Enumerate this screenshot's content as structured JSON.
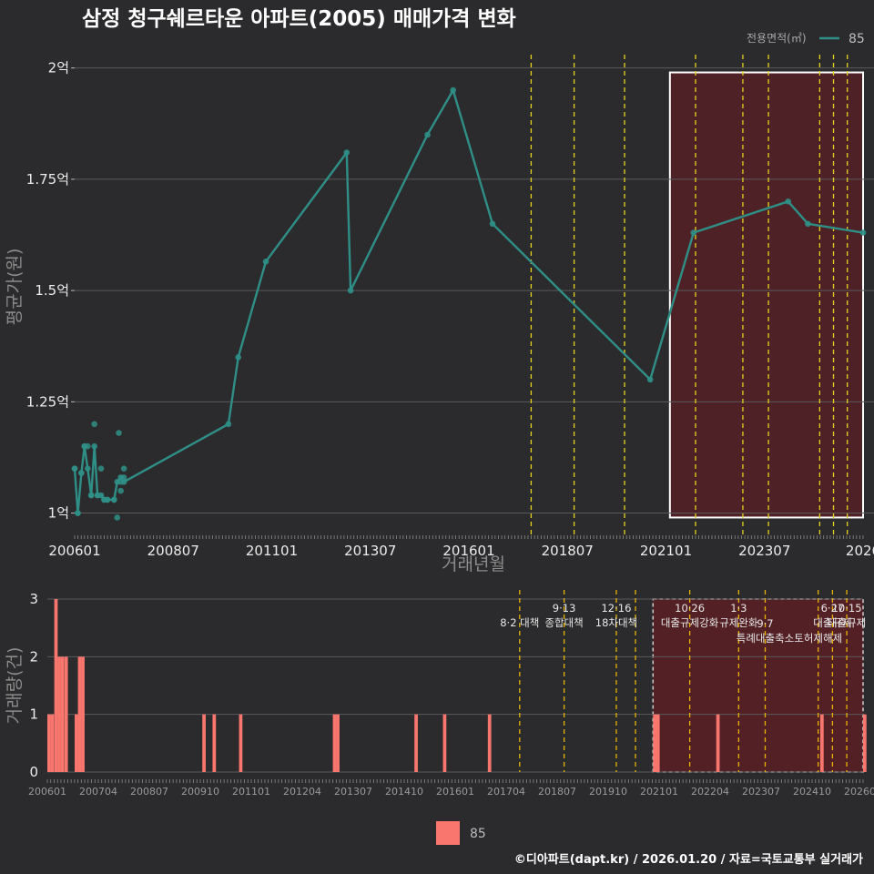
{
  "colors": {
    "background": "#2b2b2d",
    "line": "#2f8f87",
    "bar": "#f8766d",
    "policy_line": "#e6d21e",
    "highlight_fill": "#5a1f24",
    "grid": "#5a5a5c"
  },
  "chart_data": [
    {
      "type": "line",
      "title": "삼정 청구쉐르타운 아파트(2005) 매매가격 변화",
      "xlabel": "거래년월",
      "ylabel": "평균가(원)",
      "ylim": [
        0.95,
        2.03
      ],
      "y_ticks": [
        1.0,
        1.25,
        1.5,
        1.75,
        2.0
      ],
      "y_tick_labels": [
        "1억",
        "1.25억",
        "1.5억",
        "1.75억",
        "2억"
      ],
      "x_tick_labels": [
        "200601",
        "200807",
        "201101",
        "201307",
        "201601",
        "201807",
        "202101",
        "202307",
        "2026"
      ],
      "x_tick_values": [
        2006.0,
        2008.5,
        2011.0,
        2013.5,
        2016.0,
        2018.5,
        2021.0,
        2023.5,
        2026.0
      ],
      "xlim": [
        2006.0,
        2026.0
      ],
      "legend_title": "전용면적(㎡)",
      "series": [
        {
          "name": "85",
          "x": [
            2006.0,
            2006.08,
            2006.17,
            2006.25,
            2006.33,
            2006.42,
            2006.5,
            2006.58,
            2006.67,
            2006.75,
            2006.83,
            2007.0,
            2007.08,
            2007.17,
            2007.25,
            2009.9,
            2010.15,
            2010.85,
            2012.9,
            2013.0,
            2014.95,
            2015.6,
            2016.6,
            2020.6,
            2021.7,
            2024.1,
            2024.6,
            2026.0
          ],
          "values": [
            1.1,
            1.0,
            1.09,
            1.15,
            1.1,
            1.04,
            1.15,
            1.04,
            1.04,
            1.03,
            1.03,
            1.03,
            1.07,
            1.08,
            1.07,
            1.2,
            1.35,
            1.565,
            1.81,
            1.5,
            1.85,
            1.95,
            1.65,
            1.3,
            1.63,
            1.7,
            1.65,
            1.63
          ]
        }
      ],
      "scatter_points": {
        "x": [
          2006.0,
          2006.08,
          2006.17,
          2006.25,
          2006.33,
          2006.42,
          2006.5,
          2006.58,
          2006.67,
          2006.75,
          2006.83,
          2007.0,
          2007.08,
          2007.12,
          2007.17,
          2007.25,
          2007.17,
          2007.25
        ],
        "values": [
          1.1,
          1.0,
          1.09,
          1.15,
          1.15,
          1.04,
          1.2,
          1.04,
          1.1,
          1.03,
          1.03,
          1.03,
          0.99,
          1.18,
          1.05,
          1.1,
          1.07,
          1.08
        ]
      },
      "policy_lines_x": [
        2017.58,
        2018.67,
        2019.95,
        2021.75,
        2022.95,
        2023.6,
        2024.9,
        2025.25,
        2025.6
      ],
      "highlight_box": {
        "x0": 2021.1,
        "x1": 2026.0,
        "y0": 0.99,
        "y1": 1.99
      }
    },
    {
      "type": "bar",
      "ylabel": "거래량(건)",
      "ylim": [
        0,
        3
      ],
      "y_ticks": [
        0,
        1,
        2,
        3
      ],
      "y_tick_labels": [
        "0",
        "1",
        "2",
        "3"
      ],
      "x_tick_labels": [
        "200601",
        "200704",
        "200807",
        "200910",
        "201101",
        "201204",
        "201307",
        "201410",
        "201601",
        "201704",
        "201807",
        "201910",
        "202101",
        "202204",
        "202307",
        "202410",
        "202601"
      ],
      "x_tick_values": [
        2006.0,
        2007.25,
        2008.5,
        2009.75,
        2011.0,
        2012.25,
        2013.5,
        2014.75,
        2016.0,
        2017.25,
        2018.5,
        2019.75,
        2021.0,
        2022.25,
        2023.5,
        2024.75,
        2026.0
      ],
      "xlim": [
        2006.0,
        2026.0
      ],
      "legend_label": "85",
      "series": [
        {
          "name": "85",
          "x": [
            2006.0,
            2006.08,
            2006.17,
            2006.25,
            2006.33,
            2006.42,
            2006.67,
            2006.75,
            2006.83,
            2009.8,
            2010.05,
            2010.7,
            2013.0,
            2013.08,
            2015.0,
            2015.7,
            2016.8,
            2020.85,
            2020.93,
            2022.4,
            2024.95,
            2026.0
          ],
          "values": [
            1,
            1,
            3,
            2,
            2,
            2,
            1,
            2,
            2,
            1,
            1,
            1,
            1,
            1,
            1,
            1,
            1,
            1,
            1,
            1,
            1,
            1
          ]
        }
      ],
      "policy_lines_x": [
        2017.58,
        2018.67,
        2019.95,
        2020.42,
        2021.75,
        2022.95,
        2023.6,
        2024.9,
        2025.25,
        2025.6
      ],
      "policy_labels": [
        {
          "x": 2017.58,
          "row": 0,
          "date": "",
          "text": "8·2 대책"
        },
        {
          "x": 2018.67,
          "row": 0,
          "date": "9·13",
          "text": "종합대책"
        },
        {
          "x": 2019.95,
          "row": 0,
          "date": "12·16",
          "text": "18차대책"
        },
        {
          "x": 2021.75,
          "row": 0,
          "date": "10·26",
          "text": "대출규제강화"
        },
        {
          "x": 2022.95,
          "row": 0,
          "date": "1·3",
          "text": "규제완화"
        },
        {
          "x": 2023.6,
          "row": 1,
          "date": "9·7",
          "text": "특례대출축소"
        },
        {
          "x": 2024.9,
          "row": 1,
          "date": "",
          "text": "토허제해제"
        },
        {
          "x": 2025.25,
          "row": 0,
          "date": "6·27",
          "text": "대출규제"
        },
        {
          "x": 2025.6,
          "row": 0,
          "date": "10·15",
          "text": "대출규제"
        }
      ],
      "highlight_box": {
        "x0": 2020.85,
        "x1": 2026.0,
        "y0": 0,
        "y1": 3
      }
    }
  ],
  "caption": "©디아파트(dapt.kr) / 2026.01.20 / 자료=국토교통부 실거래가"
}
